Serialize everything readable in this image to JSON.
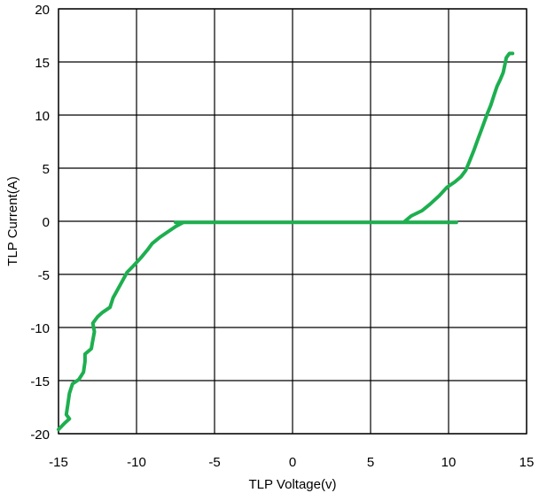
{
  "chart_data": {
    "type": "line",
    "title": "",
    "xlabel": "TLP Voltage(v)",
    "ylabel": "TLP Current(A)",
    "xlim": [
      -15,
      15
    ],
    "ylim": [
      -20,
      20
    ],
    "xticks": [
      "-15",
      "-10",
      "-5",
      "0",
      "5",
      "10",
      "15"
    ],
    "yticks": [
      "20",
      "15",
      "10",
      "5",
      "0",
      "-5",
      "-10",
      "-15",
      "-20"
    ],
    "grid": true,
    "legend": "none",
    "colors": {
      "series": "#1daf4f",
      "grid": "#000000",
      "background": "#ffffff"
    },
    "series": [
      {
        "name": "",
        "points": [
          [
            -15.0,
            -19.6
          ],
          [
            -14.6,
            -19.0
          ],
          [
            -14.3,
            -18.6
          ],
          [
            -14.5,
            -18.2
          ],
          [
            -14.4,
            -17.2
          ],
          [
            -14.3,
            -16.2
          ],
          [
            -14.1,
            -15.3
          ],
          [
            -13.7,
            -14.9
          ],
          [
            -13.4,
            -14.2
          ],
          [
            -13.3,
            -13.2
          ],
          [
            -13.3,
            -12.5
          ],
          [
            -12.9,
            -12.0
          ],
          [
            -12.8,
            -11.2
          ],
          [
            -12.7,
            -10.4
          ],
          [
            -12.8,
            -9.6
          ],
          [
            -12.5,
            -9.0
          ],
          [
            -12.2,
            -8.6
          ],
          [
            -11.7,
            -8.1
          ],
          [
            -11.5,
            -7.2
          ],
          [
            -11.2,
            -6.4
          ],
          [
            -10.9,
            -5.6
          ],
          [
            -10.6,
            -4.8
          ],
          [
            -10.2,
            -4.2
          ],
          [
            -9.7,
            -3.4
          ],
          [
            -9.3,
            -2.7
          ],
          [
            -9.0,
            -2.1
          ],
          [
            -8.5,
            -1.5
          ],
          [
            -8.0,
            -1.0
          ],
          [
            -7.5,
            -0.5
          ],
          [
            -7.0,
            -0.1
          ],
          [
            -7.5,
            -0.1
          ],
          [
            -5.0,
            -0.1
          ],
          [
            0.0,
            -0.1
          ],
          [
            5.0,
            -0.1
          ],
          [
            10.5,
            -0.1
          ],
          [
            7.3,
            -0.1
          ],
          [
            7.2,
            0.0
          ],
          [
            7.6,
            0.5
          ],
          [
            8.3,
            1.0
          ],
          [
            8.8,
            1.6
          ],
          [
            9.4,
            2.4
          ],
          [
            9.9,
            3.2
          ],
          [
            10.4,
            3.7
          ],
          [
            10.8,
            4.2
          ],
          [
            11.1,
            4.8
          ],
          [
            11.3,
            5.5
          ],
          [
            11.6,
            6.6
          ],
          [
            11.9,
            7.8
          ],
          [
            12.1,
            8.6
          ],
          [
            12.3,
            9.4
          ],
          [
            12.5,
            10.2
          ],
          [
            12.7,
            10.9
          ],
          [
            12.9,
            11.8
          ],
          [
            13.1,
            12.7
          ],
          [
            13.3,
            13.3
          ],
          [
            13.5,
            14.0
          ],
          [
            13.6,
            14.7
          ],
          [
            13.7,
            15.4
          ],
          [
            13.9,
            15.8
          ],
          [
            14.1,
            15.8
          ]
        ]
      }
    ]
  }
}
